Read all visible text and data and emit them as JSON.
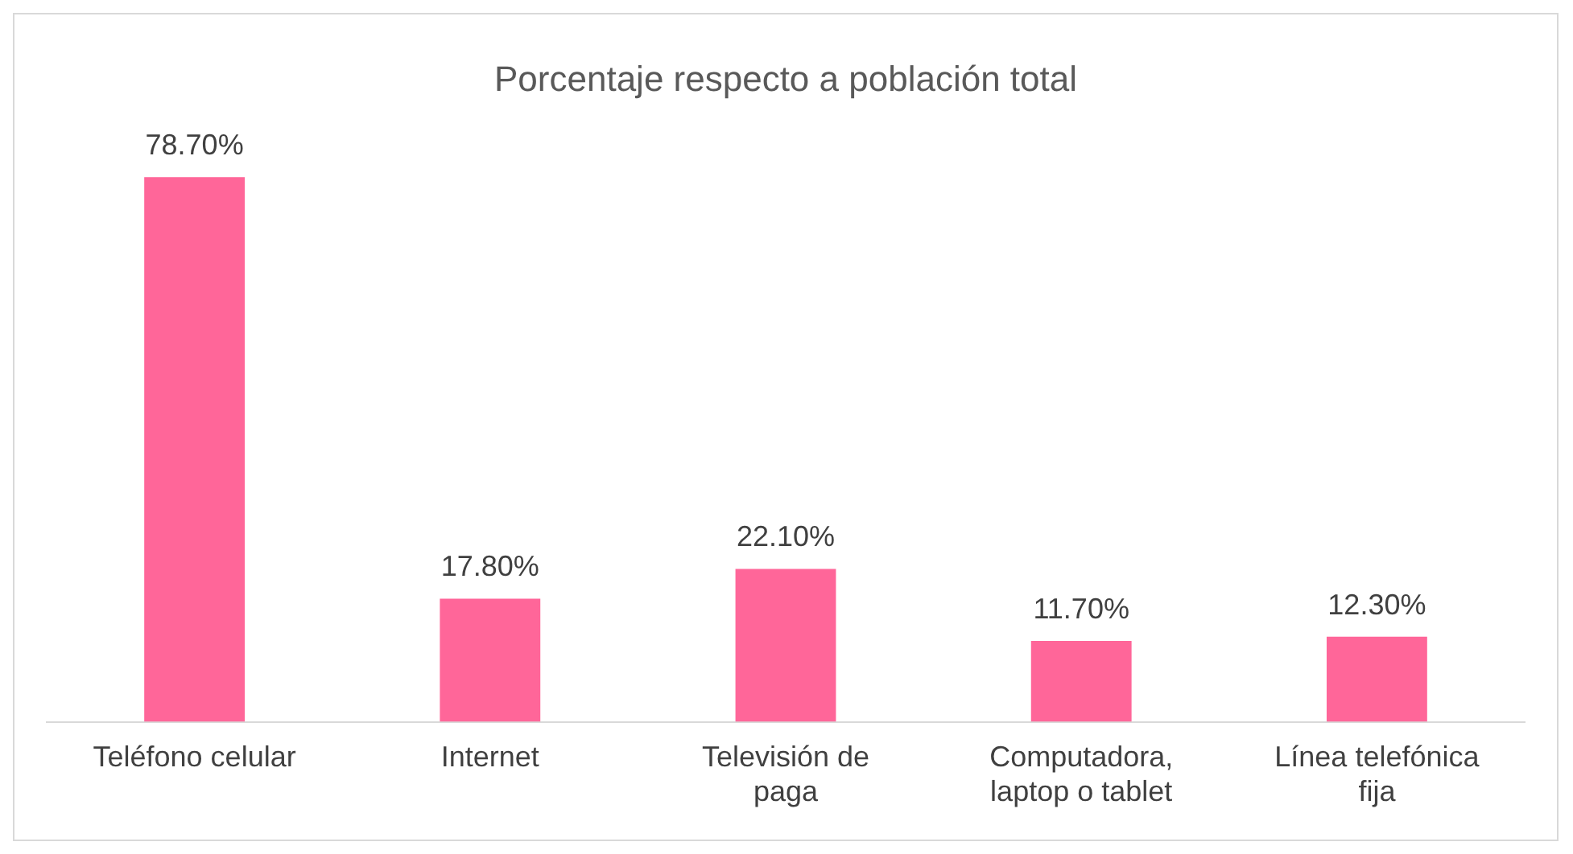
{
  "chart_data": {
    "type": "bar",
    "title": "Porcentaje respecto a población total",
    "categories": [
      "Teléfono celular",
      "Internet",
      "Televisión de paga",
      "Computadora, laptop o tablet",
      "Línea telefónica fija"
    ],
    "values": [
      78.7,
      17.8,
      22.1,
      11.7,
      12.3
    ],
    "value_labels": [
      "78.70%",
      "17.80%",
      "22.10%",
      "11.70%",
      "12.30%"
    ],
    "color": "#ff6699",
    "grid": false,
    "legend": false
  }
}
